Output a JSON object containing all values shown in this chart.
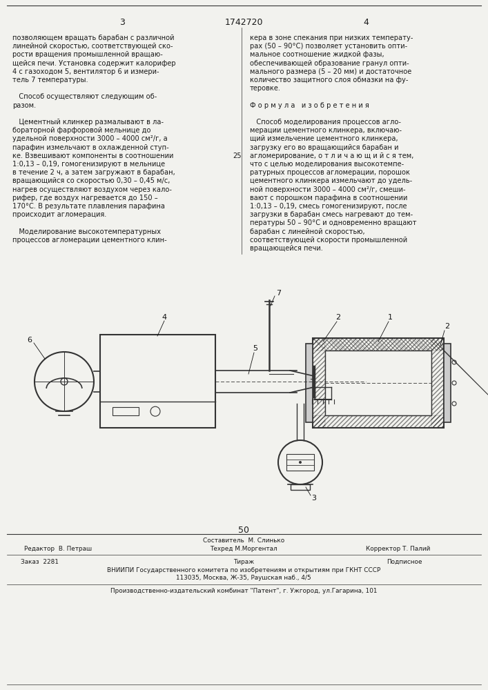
{
  "page_number_left": "3",
  "patent_number": "1742720",
  "page_number_right": "4",
  "left_column_text": [
    "позволяющем вращать барабан с различной",
    "линейной скоростью, соответствующей ско-",
    "рости вращения промышленной вращаю-",
    "щейся печи. Установка содержит калорифер",
    "4 с газоходом 5, вентилятор 6 и измери-",
    "тель 7 температуры.",
    "",
    "   Способ осуществляют следующим об-",
    "разом.",
    "",
    "   Цементный клинкер размалывают в ла-",
    "бораторной фарфоровой мельнице до",
    "удельной поверхности 3000 – 4000 см²/г, а",
    "парафин измельчают в охлажденной ступ-",
    "ке. Взвешивают компоненты в соотношении",
    "1:0,13 – 0,19, гомогенизируют в мельнице",
    "в течение 2 ч, а затем загружают в барабан,",
    "вращающийся со скоростью 0,30 – 0,45 м/с,",
    "нагрев осуществляют воздухом через кало-",
    "рифер, где воздух нагревается до 150 –",
    "170°С. В результате плавления парафина",
    "происходит агломерация.",
    "",
    "   Моделирование высокотемпературных",
    "процессов агломерации цементного клин-"
  ],
  "right_column_text": [
    "кера в зоне спекания при низких температу-",
    "рах (50 – 90°С) позволяет установить опти-",
    "мальное соотношение жидкой фазы,",
    "обеспечивающей образование гранул опти-",
    "мального размера (5 – 20 мм) и достаточное",
    "количество защитного слоя обмазки на фу-",
    "теровке.",
    "",
    "Ф о р м у л а   и з о б р е т е н и я",
    "",
    "   Способ моделирования процессов агло-",
    "мерации цементного клинкера, включаю-",
    "щий измельчение цементного клинкера,",
    "загрузку его во вращающийся барабан и",
    "агломерирование, о т л и ч а ю щ и й с я тем,",
    "что с целью моделирования высокотемпе-",
    "ратурных процессов агломерации, порошок",
    "цементного клинкера измельчают до удель-",
    "ной поверхности 3000 – 4000 см²/г, смеши-",
    "вают с порошком парафина в соотношении",
    "1:0,13 – 0,19, смесь гомогенизируют, после",
    "загрузки в барабан смесь нагревают до тем-",
    "пературы 50 – 90°С и одновременно вращают",
    "барабан с линейной скоростью,",
    "соответствующей скорости промышленной",
    "вращающейся печи."
  ],
  "line_number": "25",
  "diagram_label": "50",
  "staff_line1_top": "Составитель  М. Слинько",
  "staff_line1_left": "Редактор  В. Петраш",
  "staff_line1_center": "Техред М.Моргентал",
  "staff_line1_right": "Корректор Т. Палий",
  "staff_line2_left": "Заказ  2281",
  "staff_line2_center": "Тираж",
  "staff_line2_right": "Подписное",
  "vniiipi_line1": "ВНИИПИ Государственного комитета по изобретениям и открытиям при ГКНТ СССР",
  "vniiipi_line2": "113035, Москва, Ж-35, Раушская наб., 4/5",
  "publisher": "Производственно-издательский комбинат \"Патент\", г. Ужгород, ул.Гагарина, 101",
  "bg_color": "#f2f2ee",
  "text_color": "#1a1a1a",
  "line_color": "#333333"
}
